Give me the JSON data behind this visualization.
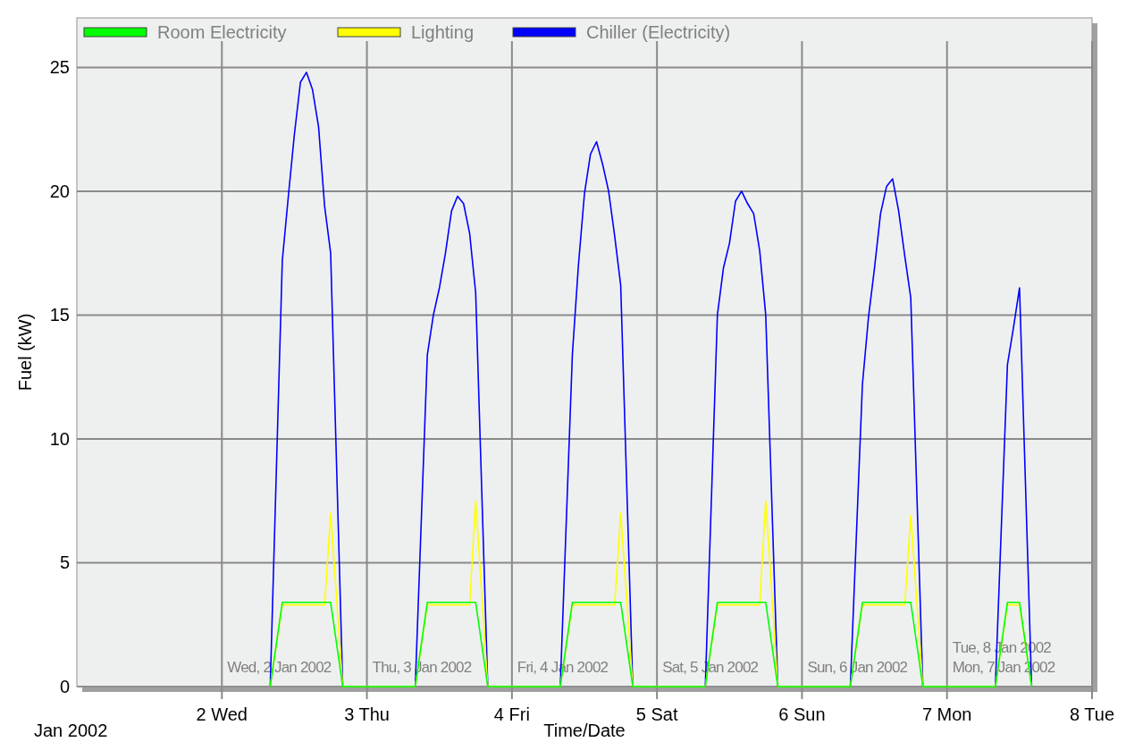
{
  "chart_data": {
    "type": "line",
    "xlabel": "Time/Date",
    "ylabel": "Fuel (kW)",
    "xlim": [
      "2002-01-01T00:00",
      "2002-01-08T00:00"
    ],
    "xticks": [
      {
        "value": "2002-01-02",
        "label": "2 Wed"
      },
      {
        "value": "2002-01-03",
        "label": "3 Thu"
      },
      {
        "value": "2002-01-04",
        "label": "4 Fri"
      },
      {
        "value": "2002-01-05",
        "label": "5 Sat"
      },
      {
        "value": "2002-01-06",
        "label": "6 Sun"
      },
      {
        "value": "2002-01-07",
        "label": "7 Mon"
      },
      {
        "value": "2002-01-08",
        "label": "8 Tue"
      }
    ],
    "ylim": [
      0,
      27
    ],
    "yticks": [
      0,
      5,
      10,
      15,
      20,
      25
    ],
    "grid": true,
    "legend": "top left",
    "marker": "none",
    "line_style": "solid",
    "annotations": [
      "Jan 2002",
      "Wed, 2 Jan 2002",
      "Thu, 3 Jan 2002",
      "Fri, 4 Jan 2002",
      "Sat, 5 Jan 2002",
      "Sun, 6 Jan 2002",
      "Mon, 7 Jan 2002",
      "Tue, 8 Jan 2002"
    ],
    "series": [
      {
        "name": "Room Electricity",
        "color": "#00ff00",
        "x": [
          "2002-01-02T08:00",
          "2002-01-02T10:00",
          "2002-01-02T18:00",
          "2002-01-02T20:00",
          "2002-01-03T08:00",
          "2002-01-03T10:00",
          "2002-01-03T18:00",
          "2002-01-03T20:00",
          "2002-01-04T08:00",
          "2002-01-04T10:00",
          "2002-01-04T18:00",
          "2002-01-04T20:00",
          "2002-01-05T08:00",
          "2002-01-05T10:00",
          "2002-01-05T18:00",
          "2002-01-05T20:00",
          "2002-01-06T08:00",
          "2002-01-06T10:00",
          "2002-01-06T18:00",
          "2002-01-06T20:00",
          "2002-01-07T08:00",
          "2002-01-07T10:00",
          "2002-01-07T12:00",
          "2002-01-07T14:00"
        ],
        "values": [
          0,
          3.4,
          3.4,
          0,
          0,
          3.4,
          3.4,
          0,
          0,
          3.4,
          3.4,
          0,
          0,
          3.4,
          3.4,
          0,
          0,
          3.4,
          3.4,
          0,
          0,
          3.4,
          3.4,
          0
        ]
      },
      {
        "name": "Lighting",
        "color": "#ffff00",
        "x": [
          "2002-01-02T08:00",
          "2002-01-02T10:00",
          "2002-01-02T17:00",
          "2002-01-02T18:00",
          "2002-01-02T20:00",
          "2002-01-03T08:00",
          "2002-01-03T10:00",
          "2002-01-03T17:00",
          "2002-01-03T18:00",
          "2002-01-03T20:00",
          "2002-01-04T08:00",
          "2002-01-04T10:00",
          "2002-01-04T17:00",
          "2002-01-04T18:00",
          "2002-01-04T20:00",
          "2002-01-05T08:00",
          "2002-01-05T10:00",
          "2002-01-05T17:00",
          "2002-01-05T18:00",
          "2002-01-05T20:00",
          "2002-01-06T08:00",
          "2002-01-06T10:00",
          "2002-01-06T17:00",
          "2002-01-06T18:00",
          "2002-01-06T20:00",
          "2002-01-07T08:00",
          "2002-01-07T10:00",
          "2002-01-07T12:00",
          "2002-01-07T14:00"
        ],
        "values": [
          0,
          3.3,
          3.3,
          7.0,
          0,
          0,
          3.3,
          3.3,
          7.5,
          0,
          0,
          3.3,
          3.3,
          7.0,
          0,
          0,
          3.3,
          3.3,
          7.5,
          0,
          0,
          3.3,
          3.3,
          6.9,
          0,
          0,
          3.3,
          3.3,
          0
        ]
      },
      {
        "name": "Chiller (Electricity)",
        "color": "#0000ff",
        "x": [
          "2002-01-02T08:00",
          "2002-01-02T10:00",
          "2002-01-02T11:00",
          "2002-01-02T12:00",
          "2002-01-02T13:00",
          "2002-01-02T14:00",
          "2002-01-02T15:00",
          "2002-01-02T16:00",
          "2002-01-02T17:00",
          "2002-01-02T18:00",
          "2002-01-02T20:00",
          "2002-01-03T08:00",
          "2002-01-03T10:00",
          "2002-01-03T11:00",
          "2002-01-03T12:00",
          "2002-01-03T13:00",
          "2002-01-03T14:00",
          "2002-01-03T15:00",
          "2002-01-03T16:00",
          "2002-01-03T17:00",
          "2002-01-03T18:00",
          "2002-01-03T20:00",
          "2002-01-04T08:00",
          "2002-01-04T10:00",
          "2002-01-04T11:00",
          "2002-01-04T12:00",
          "2002-01-04T13:00",
          "2002-01-04T14:00",
          "2002-01-04T15:00",
          "2002-01-04T16:00",
          "2002-01-04T17:00",
          "2002-01-04T18:00",
          "2002-01-04T20:00",
          "2002-01-05T08:00",
          "2002-01-05T10:00",
          "2002-01-05T11:00",
          "2002-01-05T12:00",
          "2002-01-05T13:00",
          "2002-01-05T14:00",
          "2002-01-05T15:00",
          "2002-01-05T16:00",
          "2002-01-05T17:00",
          "2002-01-05T18:00",
          "2002-01-05T20:00",
          "2002-01-06T08:00",
          "2002-01-06T10:00",
          "2002-01-06T11:00",
          "2002-01-06T12:00",
          "2002-01-06T13:00",
          "2002-01-06T14:00",
          "2002-01-06T15:00",
          "2002-01-06T16:00",
          "2002-01-06T17:00",
          "2002-01-06T18:00",
          "2002-01-06T20:00",
          "2002-01-07T08:00",
          "2002-01-07T10:00",
          "2002-01-07T11:00",
          "2002-01-07T12:00",
          "2002-01-07T14:00"
        ],
        "values": [
          0,
          17.2,
          19.8,
          22.3,
          24.4,
          24.8,
          24.1,
          22.6,
          19.4,
          17.5,
          0,
          0,
          13.4,
          15.0,
          16.1,
          17.5,
          19.2,
          19.8,
          19.5,
          18.3,
          15.9,
          0,
          0,
          13.4,
          17.0,
          19.9,
          21.5,
          22.0,
          21.1,
          20.0,
          18.2,
          16.2,
          0,
          0,
          15.0,
          16.9,
          17.9,
          19.6,
          20.0,
          19.5,
          19.1,
          17.6,
          15.0,
          0,
          0,
          12.2,
          14.9,
          16.9,
          19.1,
          20.2,
          20.5,
          19.2,
          17.4,
          15.7,
          0,
          0,
          13.0,
          14.5,
          16.1,
          0
        ]
      }
    ]
  }
}
